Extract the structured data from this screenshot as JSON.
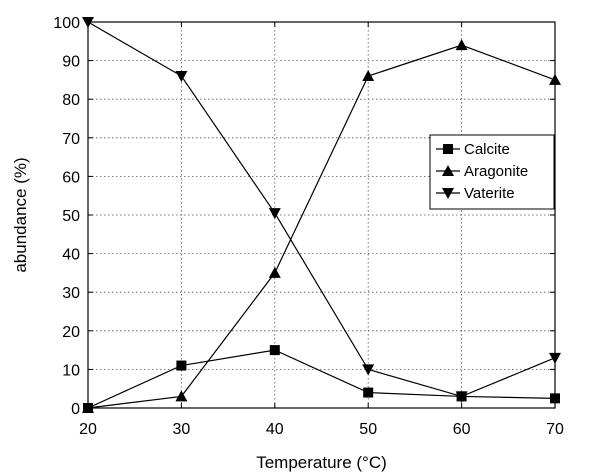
{
  "chart_data": {
    "type": "line",
    "title": "",
    "xlabel": "Temperature (°C)",
    "ylabel": "abundance (%)",
    "xlim": [
      20,
      70
    ],
    "ylim": [
      0,
      100
    ],
    "xticks": [
      20,
      30,
      40,
      50,
      60,
      70
    ],
    "yticks": [
      0,
      10,
      20,
      30,
      40,
      50,
      60,
      70,
      80,
      90,
      100
    ],
    "grid": true,
    "legend_position": "right, upper-middle",
    "x": [
      20,
      30,
      40,
      50,
      60,
      70
    ],
    "series": [
      {
        "name": "Calcite",
        "marker": "square",
        "color": "#000000",
        "values": [
          0,
          11,
          15,
          4,
          3,
          2.5
        ]
      },
      {
        "name": "Aragonite",
        "marker": "triangle-up",
        "color": "#000000",
        "values": [
          0,
          3,
          35,
          86,
          94,
          85
        ]
      },
      {
        "name": "Vaterite",
        "marker": "triangle-down",
        "color": "#000000",
        "values": [
          100,
          86,
          50.5,
          10,
          3,
          13
        ]
      }
    ]
  }
}
